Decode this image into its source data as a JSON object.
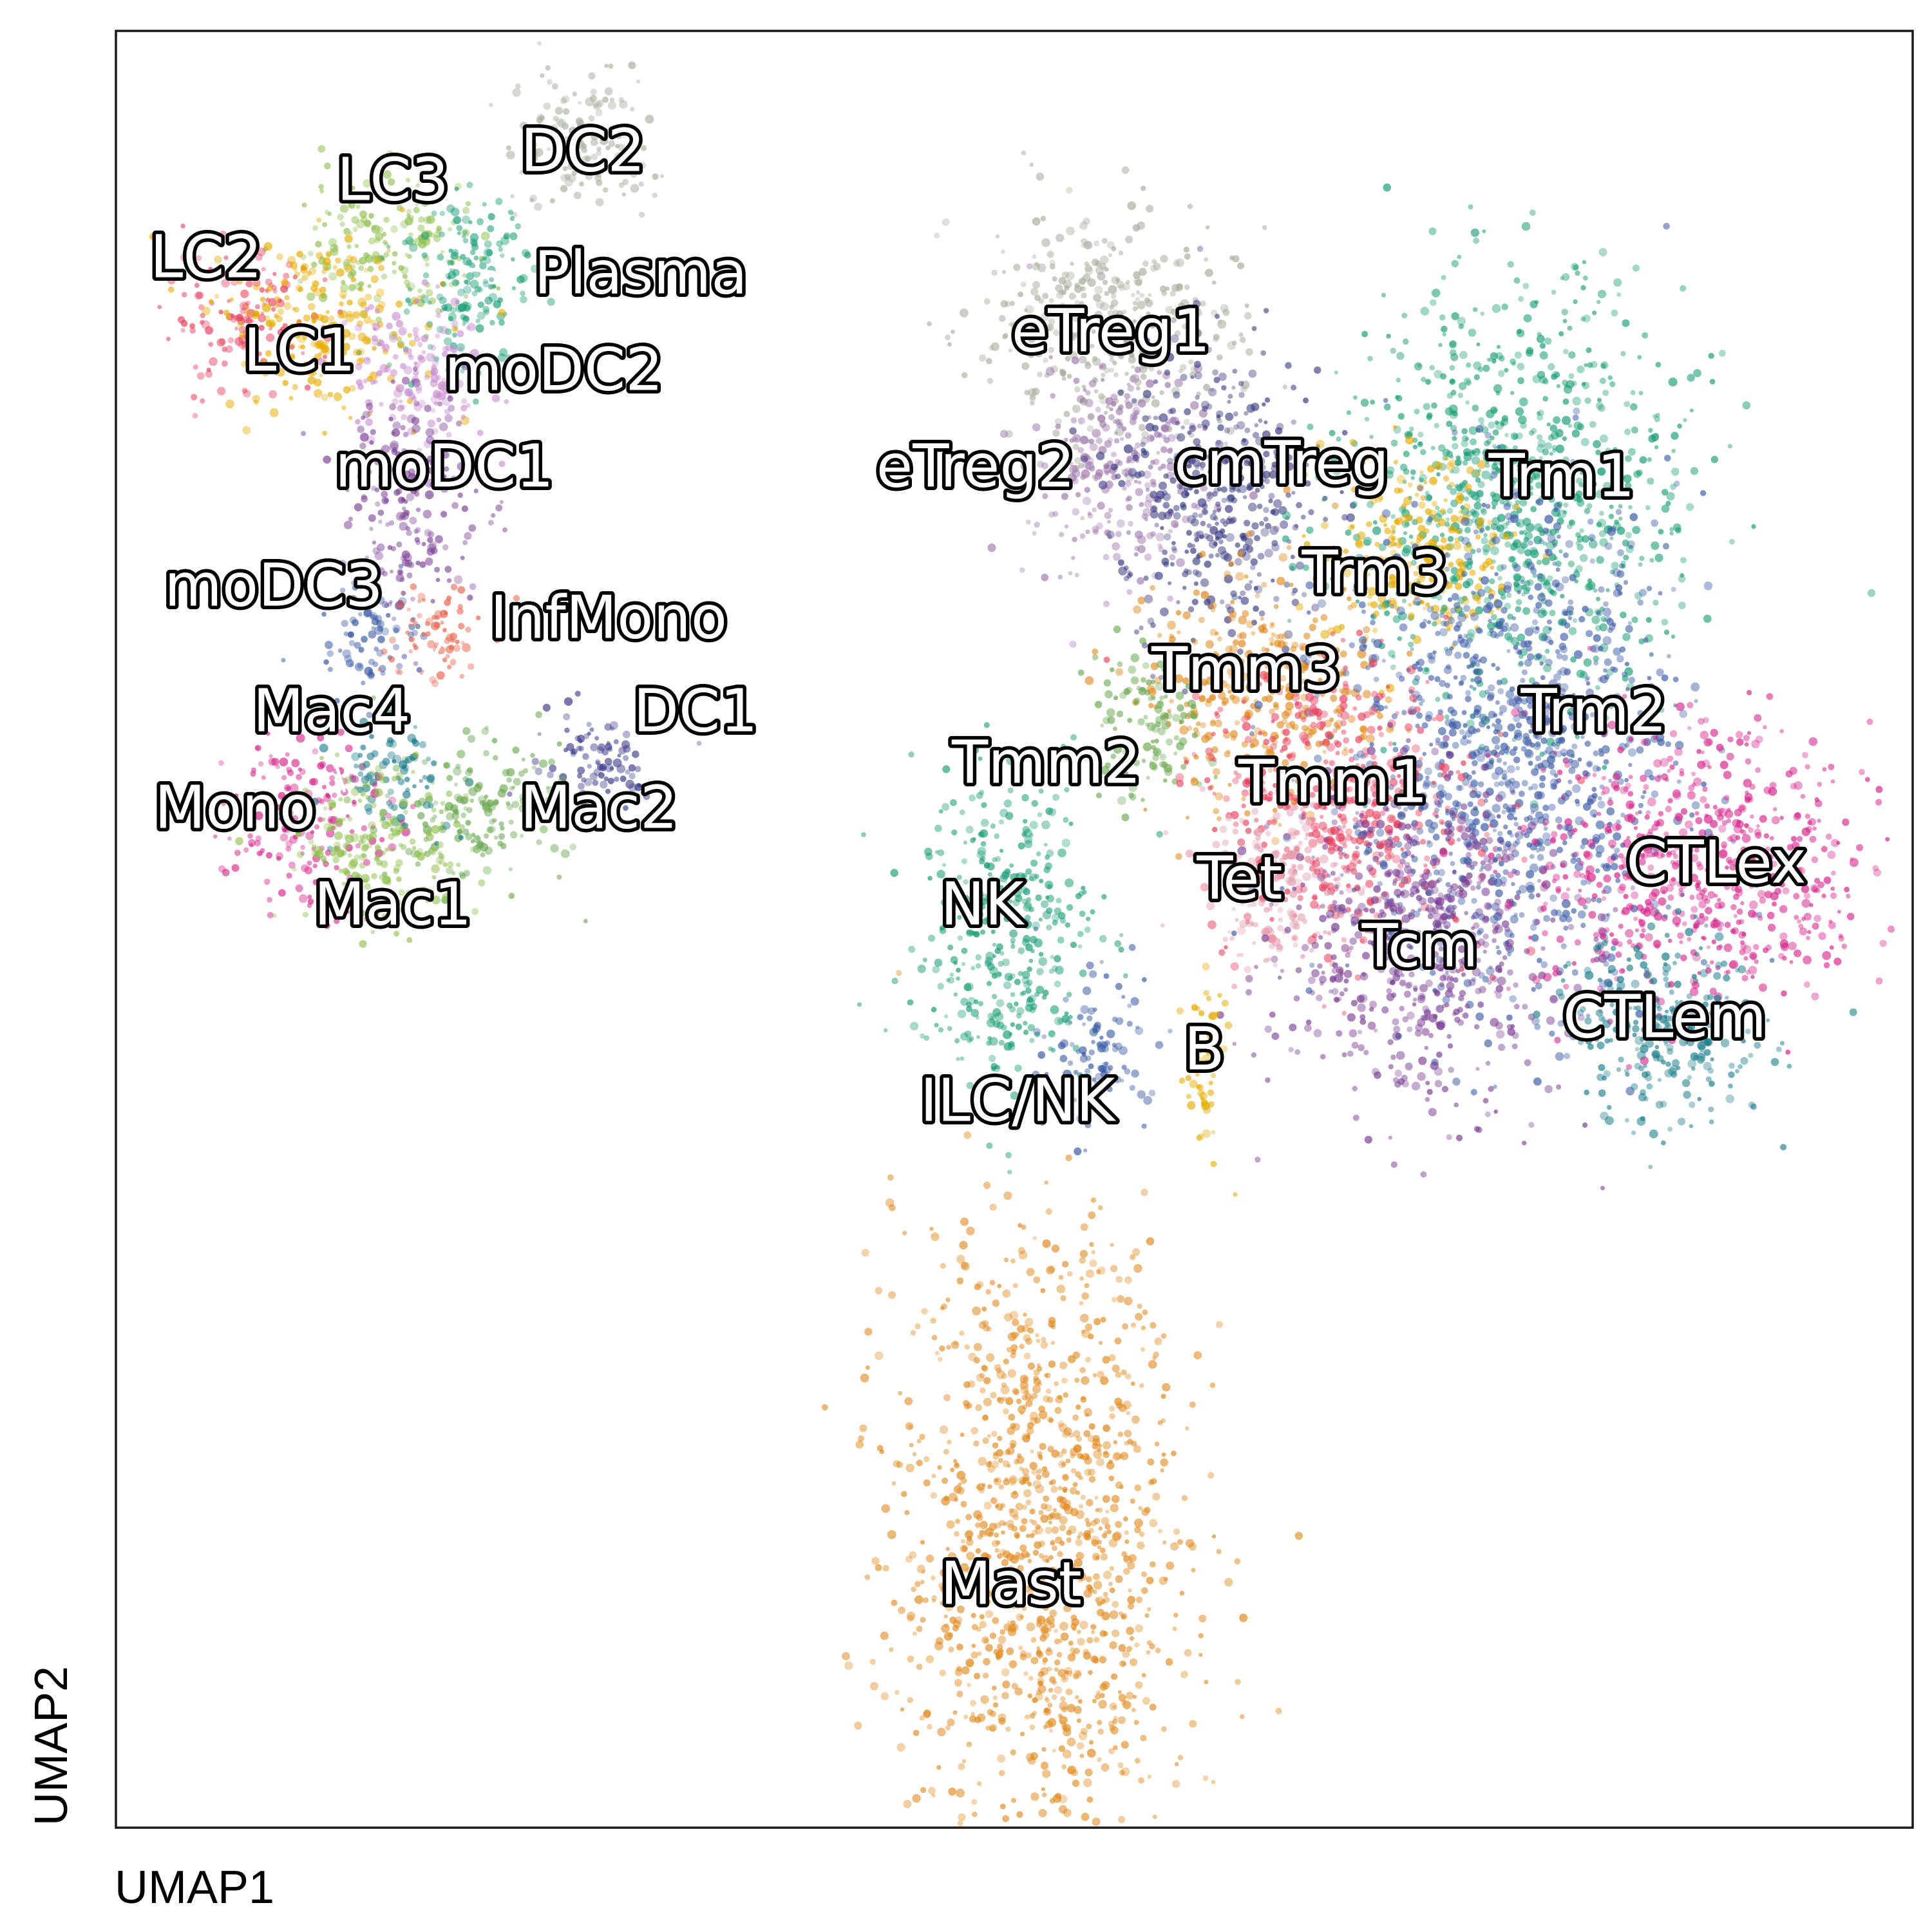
{
  "chart_data": {
    "type": "scatter",
    "title": "",
    "xlabel": "UMAP1",
    "ylabel": "UMAP2",
    "xlim": [
      0,
      100
    ],
    "ylim": [
      0,
      100
    ],
    "grid": false,
    "ticks": false,
    "legend": "on-plot cluster labels",
    "clusters": [
      {
        "name": "DC2",
        "x": 26.0,
        "y": 94.0,
        "spread": [
          2.0,
          2.0
        ],
        "color": "#a8b0a0"
      },
      {
        "name": "LC3",
        "x": 14.5,
        "y": 88.0,
        "spread": [
          2.5,
          2.0
        ],
        "color": "#8fbf4d"
      },
      {
        "name": "LC2",
        "x": 7.0,
        "y": 84.0,
        "spread": [
          2.2,
          1.8
        ],
        "color": "#e7415f"
      },
      {
        "name": "Plasma",
        "x": 19.5,
        "y": 86.0,
        "spread": [
          1.8,
          2.6
        ],
        "color": "#1b9e77"
      },
      {
        "name": "LC1",
        "x": 11.5,
        "y": 83.5,
        "spread": [
          2.8,
          2.4
        ],
        "color": "#e6ab02"
      },
      {
        "name": "moDC2",
        "x": 16.5,
        "y": 81.0,
        "spread": [
          2.2,
          2.0
        ],
        "color": "#c98bd0"
      },
      {
        "name": "moDC1",
        "x": 16.5,
        "y": 74.0,
        "spread": [
          2.0,
          3.0
        ],
        "color": "#7b3f95"
      },
      {
        "name": "moDC3",
        "x": 14.0,
        "y": 66.5,
        "spread": [
          1.5,
          1.6
        ],
        "color": "#3b5ba5"
      },
      {
        "name": "InfMono",
        "x": 18.0,
        "y": 66.5,
        "spread": [
          1.3,
          1.6
        ],
        "color": "#e8634b"
      },
      {
        "name": "DC1",
        "x": 26.5,
        "y": 59.5,
        "spread": [
          2.0,
          1.4
        ],
        "color": "#3a3a8a"
      },
      {
        "name": "Mac2",
        "x": 20.0,
        "y": 56.5,
        "spread": [
          2.4,
          2.0
        ],
        "color": "#6aa84f"
      },
      {
        "name": "Mac4",
        "x": 15.5,
        "y": 58.5,
        "spread": [
          1.6,
          1.5
        ],
        "color": "#187b8a"
      },
      {
        "name": "Mono",
        "x": 10.5,
        "y": 56.0,
        "spread": [
          2.2,
          2.4
        ],
        "color": "#d6248b"
      },
      {
        "name": "Mac1",
        "x": 14.5,
        "y": 54.5,
        "spread": [
          2.6,
          2.2
        ],
        "color": "#8fbf4d"
      },
      {
        "name": "eTreg1",
        "x": 55.0,
        "y": 83.5,
        "spread": [
          3.6,
          3.2
        ],
        "color": "#a7ad9e"
      },
      {
        "name": "eTreg2",
        "x": 56.0,
        "y": 75.5,
        "spread": [
          2.6,
          3.2
        ],
        "color": "#9f78ad"
      },
      {
        "name": "cmTreg",
        "x": 61.5,
        "y": 74.0,
        "spread": [
          2.8,
          4.2
        ],
        "color": "#3a3a82"
      },
      {
        "name": "Trm1",
        "x": 78.0,
        "y": 74.0,
        "spread": [
          4.6,
          5.8
        ],
        "color": "#1b9e77"
      },
      {
        "name": "Trm3",
        "x": 72.5,
        "y": 71.0,
        "spread": [
          2.6,
          2.8
        ],
        "color": "#e6ab02"
      },
      {
        "name": "Tmm3",
        "x": 64.0,
        "y": 63.0,
        "spread": [
          3.2,
          3.2
        ],
        "color": "#e08a1f"
      },
      {
        "name": "Tmm2",
        "x": 57.5,
        "y": 61.5,
        "spread": [
          1.6,
          2.2
        ],
        "color": "#6aa84f"
      },
      {
        "name": "Trm2",
        "x": 77.5,
        "y": 60.0,
        "spread": [
          4.6,
          6.8
        ],
        "color": "#3b5ba5"
      },
      {
        "name": "Tmm1",
        "x": 68.0,
        "y": 57.0,
        "spread": [
          3.8,
          3.8
        ],
        "color": "#e7415f"
      },
      {
        "name": "Tet",
        "x": 64.5,
        "y": 52.5,
        "spread": [
          2.0,
          2.4
        ],
        "color": "#e5a3b4"
      },
      {
        "name": "Tcm",
        "x": 72.5,
        "y": 49.5,
        "spread": [
          4.0,
          4.6
        ],
        "color": "#7b3f95"
      },
      {
        "name": "CTLex",
        "x": 88.0,
        "y": 53.5,
        "spread": [
          4.8,
          4.0
        ],
        "color": "#d6248b"
      },
      {
        "name": "CTLem",
        "x": 86.0,
        "y": 44.5,
        "spread": [
          3.0,
          2.6
        ],
        "color": "#187b8a"
      },
      {
        "name": "NK",
        "x": 49.5,
        "y": 50.0,
        "spread": [
          2.6,
          4.4
        ],
        "color": "#1b9e77"
      },
      {
        "name": "ILC/NK",
        "x": 54.5,
        "y": 43.0,
        "spread": [
          1.4,
          2.2
        ],
        "color": "#3b5ba5"
      },
      {
        "name": "B",
        "x": 60.5,
        "y": 42.5,
        "spread": [
          0.7,
          2.4
        ],
        "color": "#e6ab02"
      },
      {
        "name": "Mast",
        "x": 51.5,
        "y": 15.5,
        "spread": [
          4.0,
          9.0
        ],
        "color": "#e08a1f"
      }
    ]
  }
}
